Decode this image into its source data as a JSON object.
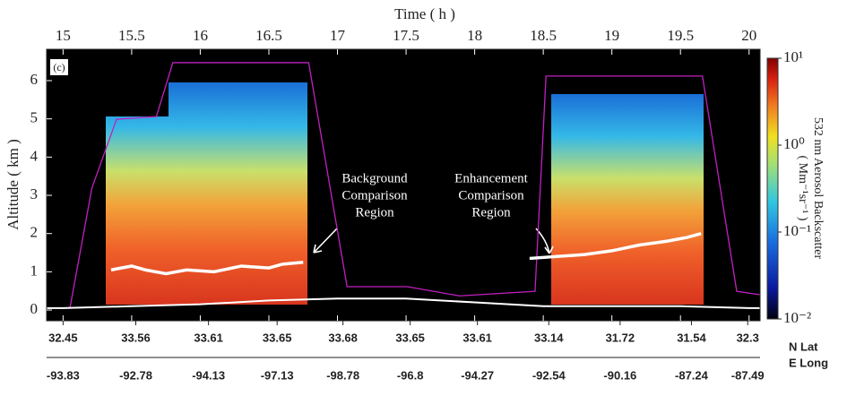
{
  "chart_data": {
    "type": "curtain",
    "panel_label": "(c)",
    "x_label": "Time ( h )",
    "y_label": "Altitude ( km )",
    "xlim": [
      14.88,
      20.08
    ],
    "ylim": [
      -0.28,
      6.82
    ],
    "xticks": [
      15,
      15.5,
      16,
      16.5,
      17,
      17.5,
      18,
      18.5,
      19,
      19.5,
      20
    ],
    "yticks": [
      0,
      1,
      2,
      3,
      4,
      5,
      6
    ],
    "lat_label": "N Lat",
    "lon_label": "E Long",
    "position_ticks": [
      {
        "value": 15.0,
        "lat": "32.45",
        "lon": "-93.83"
      },
      {
        "value": 15.53,
        "lat": "33.56",
        "lon": "-92.78"
      },
      {
        "value": 16.06,
        "lat": "33.61",
        "lon": "-94.13"
      },
      {
        "value": 16.56,
        "lat": "33.65",
        "lon": "-97.13"
      },
      {
        "value": 17.04,
        "lat": "33.68",
        "lon": "-98.78"
      },
      {
        "value": 17.53,
        "lat": "33.65",
        "lon": "-96.8"
      },
      {
        "value": 18.02,
        "lat": "33.61",
        "lon": "-94.27"
      },
      {
        "value": 18.54,
        "lat": "33.14",
        "lon": "-92.54"
      },
      {
        "value": 19.06,
        "lat": "31.72",
        "lon": "-90.16"
      },
      {
        "value": 19.58,
        "lat": "31.54",
        "lon": "-87.24"
      },
      {
        "value": 19.99,
        "lat": "32.3",
        "lon": "-87.49"
      }
    ],
    "colorbar": {
      "label": "532 nm Aerosol Backscatter",
      "unit": "( Mm⁻¹sr⁻¹ )",
      "log": true,
      "lim": [
        0.01,
        10
      ],
      "ticks": [
        {
          "value": 0.01,
          "label": "10⁻²"
        },
        {
          "value": 0.1,
          "label": "10⁻¹"
        },
        {
          "value": 1,
          "label": "10⁰"
        },
        {
          "value": 10,
          "label": "10¹"
        }
      ]
    },
    "annotations": [
      "Background",
      "Comparison",
      "Region",
      "Enhancement",
      "Comparison",
      "Region"
    ],
    "series": [
      {
        "name": "Aircraft altitude",
        "color": "#c020c0",
        "x": [
          14.88,
          15.05,
          15.21,
          15.39,
          15.68,
          15.75,
          15.8,
          16.79,
          17.07,
          17.51,
          17.89,
          18.44,
          18.52,
          19.66,
          19.91,
          20.08
        ],
        "values": [
          0.05,
          0.05,
          3.19,
          4.99,
          5.06,
          5.88,
          6.47,
          6.47,
          0.61,
          0.61,
          0.37,
          0.49,
          6.12,
          6.12,
          0.49,
          0.4
        ]
      },
      {
        "name": "Surface",
        "color": "#ffffff",
        "x": [
          14.88,
          15.0,
          15.5,
          16.0,
          16.5,
          17.0,
          17.5,
          18.0,
          18.5,
          19.0,
          19.5,
          20.0,
          20.08
        ],
        "values": [
          0.05,
          0.05,
          0.1,
          0.15,
          0.25,
          0.3,
          0.3,
          0.2,
          0.1,
          0.1,
          0.1,
          0.05,
          0.05
        ]
      },
      {
        "name": "Comparison region top",
        "color": "#ffffff",
        "x": [
          15.35,
          15.5,
          15.6,
          15.75,
          15.9,
          16.1,
          16.3,
          16.5,
          16.6,
          16.75,
          17.5,
          18.4,
          18.6,
          18.8,
          19.0,
          19.2,
          19.4,
          19.55,
          19.65
        ],
        "values": [
          1.05,
          1.15,
          1.05,
          0.95,
          1.05,
          1.0,
          1.15,
          1.1,
          1.2,
          1.25,
          null,
          1.35,
          1.4,
          1.45,
          1.55,
          1.7,
          1.8,
          1.9,
          2.0
        ]
      }
    ]
  }
}
